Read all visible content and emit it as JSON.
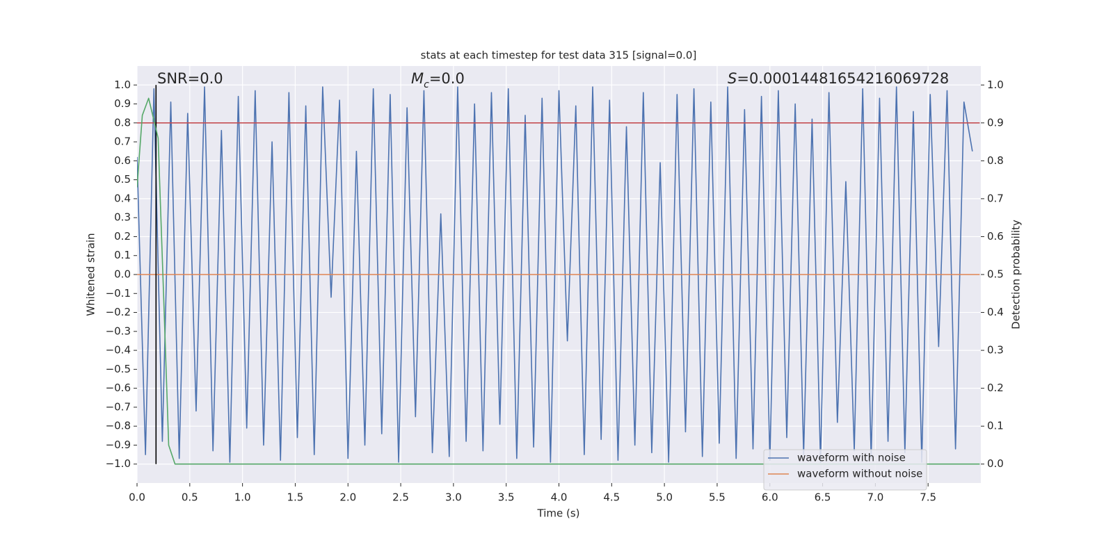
{
  "chart_data": {
    "type": "line",
    "title": "stats at each timestep for test data 315 [signal=0.0]",
    "xlabel": "Time (s)",
    "ylabel": "Whitened strain",
    "y2label": "Detection probability",
    "xlim": [
      0,
      8
    ],
    "ylim": [
      -1.1,
      1.1
    ],
    "y2lim": [
      -0.05,
      1.05
    ],
    "xticks": [
      {
        "value": 0,
        "label": "0.0"
      },
      0.5,
      {
        "value": 1,
        "label": "1.0"
      },
      1.5,
      {
        "value": 2,
        "label": "2.0"
      },
      2.5,
      {
        "value": 3,
        "label": "3.0"
      },
      3.5,
      {
        "value": 4,
        "label": "4.0"
      },
      4.5,
      {
        "value": 5,
        "label": "5.0"
      },
      5.5,
      {
        "value": 6,
        "label": "6.0"
      },
      6.5,
      {
        "value": 7,
        "label": "7.0"
      },
      7.5
    ],
    "yticks": [
      {
        "value": 1,
        "label": "1.0"
      },
      0.9,
      0.8,
      0.7,
      0.6,
      0.5,
      0.4,
      0.3,
      0.2,
      0.1,
      {
        "value": 0,
        "label": "0.0"
      },
      {
        "value": -0.1,
        "label": "−0.1"
      },
      {
        "value": -0.2,
        "label": "−0.2"
      },
      {
        "value": -0.3,
        "label": "−0.3"
      },
      {
        "value": -0.4,
        "label": "−0.4"
      },
      {
        "value": -0.5,
        "label": "−0.5"
      },
      {
        "value": -0.6,
        "label": "−0.6"
      },
      {
        "value": -0.7,
        "label": "−0.7"
      },
      {
        "value": -0.8,
        "label": "−0.8"
      },
      {
        "value": -0.9,
        "label": "−0.9"
      },
      {
        "value": -1,
        "label": "−1.0"
      }
    ],
    "y2ticks": [
      {
        "value": 1,
        "label": "1.0"
      },
      0.9,
      0.8,
      0.7,
      0.6,
      0.5,
      0.4,
      0.3,
      0.2,
      0.1,
      {
        "value": 0,
        "label": "0.0"
      }
    ],
    "grid": true,
    "legend": "lower right",
    "annotations": [
      {
        "text": "SNR=0.0"
      },
      {
        "symbol": "M",
        "subscript": "c",
        "text": "=0.0"
      },
      {
        "symbol": "S",
        "text": "=0.00014481654216069728"
      }
    ],
    "series": [
      {
        "name": "waveform with noise",
        "color": "#4c72b0",
        "x": [
          0,
          0.08,
          0.16,
          0.24,
          0.32,
          0.4,
          0.48,
          0.56,
          0.64,
          0.72,
          0.8,
          0.88,
          0.96,
          1.04,
          1.12,
          1.2,
          1.28,
          1.36,
          1.44,
          1.52,
          1.6,
          1.68,
          1.76,
          1.84,
          1.92,
          2,
          2.08,
          2.16,
          2.24,
          2.32,
          2.4,
          2.48,
          2.56,
          2.64,
          2.72,
          2.8,
          2.88,
          2.96,
          3.04,
          3.12,
          3.2,
          3.28,
          3.36,
          3.44,
          3.52,
          3.6,
          3.68,
          3.76,
          3.84,
          3.92,
          4,
          4.08,
          4.16,
          4.24,
          4.32,
          4.4,
          4.48,
          4.56,
          4.64,
          4.72,
          4.8,
          4.88,
          4.96,
          5.04,
          5.12,
          5.2,
          5.28,
          5.36,
          5.44,
          5.52,
          5.6,
          5.68,
          5.76,
          5.84,
          5.92,
          6,
          6.08,
          6.16,
          6.24,
          6.32,
          6.4,
          6.48,
          6.56,
          6.64,
          6.72,
          6.8,
          6.88,
          6.96,
          7.04,
          7.12,
          7.2,
          7.28,
          7.36,
          7.44,
          7.52,
          7.6,
          7.68,
          7.76,
          7.84,
          7.92
        ],
        "values": [
          0.62,
          -0.95,
          0.98,
          -0.88,
          0.91,
          -0.97,
          0.85,
          -0.72,
          0.99,
          -0.93,
          0.76,
          -0.99,
          0.94,
          -0.81,
          0.97,
          -0.9,
          0.7,
          -0.98,
          0.96,
          -0.86,
          0.89,
          -0.95,
          0.99,
          -0.12,
          0.92,
          -0.97,
          0.65,
          -0.9,
          0.98,
          -0.84,
          0.95,
          -0.99,
          0.88,
          -0.75,
          0.97,
          -0.94,
          0.32,
          -0.96,
          0.99,
          -0.88,
          0.9,
          -0.93,
          0.96,
          -0.79,
          0.98,
          -0.97,
          0.84,
          -0.91,
          0.93,
          -0.99,
          0.97,
          -0.35,
          0.89,
          -0.95,
          0.99,
          -0.87,
          0.92,
          -0.98,
          0.78,
          -0.9,
          0.96,
          -0.94,
          0.59,
          -0.99,
          0.95,
          -0.83,
          0.98,
          -0.96,
          0.91,
          -0.89,
          0.99,
          -0.97,
          0.87,
          -0.92,
          0.94,
          -0.98,
          0.97,
          -0.86,
          0.9,
          -0.95,
          0.82,
          -0.99,
          0.96,
          -0.78,
          0.49,
          -0.93,
          0.98,
          -0.97,
          0.93,
          -0.88,
          0.99,
          -0.94,
          0.86,
          -0.99,
          0.95,
          -0.38,
          0.97,
          -0.92,
          0.91,
          0.65
        ]
      },
      {
        "name": "waveform without noise",
        "color": "#dd8452",
        "x": [
          0,
          7.99
        ],
        "values": [
          0,
          0
        ]
      },
      {
        "color": "#c44e52",
        "axis": "y2",
        "x": [
          0,
          7.99
        ],
        "values": [
          0.9,
          0.9
        ]
      },
      {
        "color": "#000000",
        "x": [
          0.18,
          0.18
        ],
        "values": [
          -1,
          1
        ]
      },
      {
        "color": "#55a868",
        "axis": "y2",
        "x": [
          0,
          0.05,
          0.11,
          0.2,
          0.25,
          0.3,
          0.36,
          7.99
        ],
        "values": [
          0.73,
          0.92,
          0.965,
          0.86,
          0.46,
          0.05,
          0,
          0
        ]
      }
    ]
  }
}
